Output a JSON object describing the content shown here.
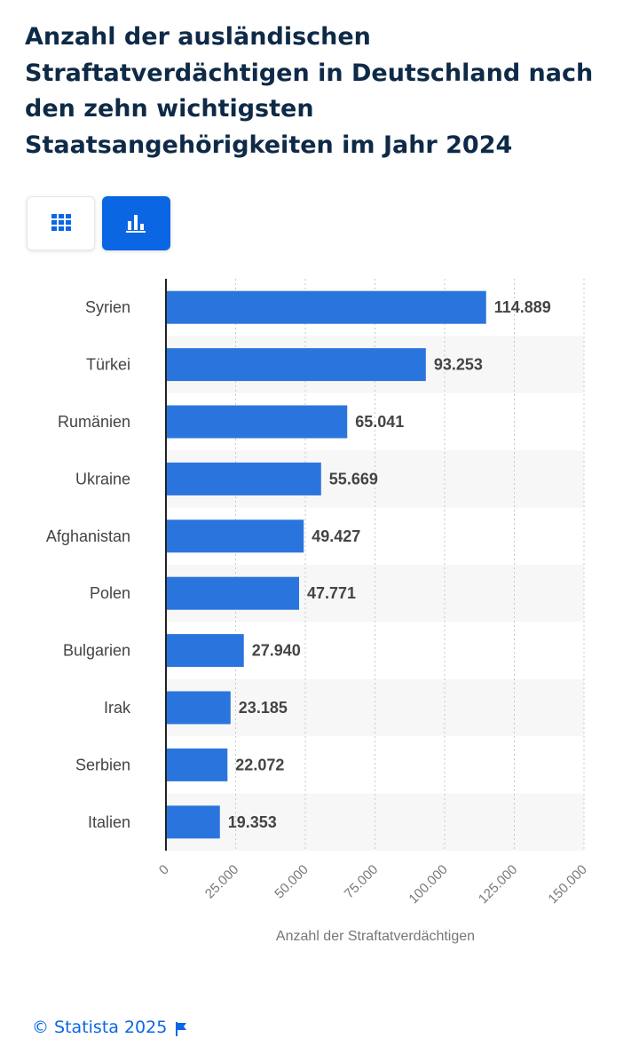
{
  "header": {
    "title": "Anzahl der ausländischen Straftatverdächtigen in Deutschland nach den zehn wichtigsten Staatsangehörigkeiten im Jahr 2024"
  },
  "view_toggle": {
    "table_icon": "grid-icon",
    "chart_icon": "bar-chart-icon",
    "active": "chart"
  },
  "footer": {
    "copyright": "© Statista 2025",
    "flag_icon": "flag-icon"
  },
  "colors": {
    "bar": "#2a75dd",
    "accent": "#0b66e4",
    "title": "#0e2a47"
  },
  "chart_data": {
    "type": "bar",
    "orientation": "horizontal",
    "categories": [
      "Syrien",
      "Türkei",
      "Rumänien",
      "Ukraine",
      "Afghanistan",
      "Polen",
      "Bulgarien",
      "Irak",
      "Serbien",
      "Italien"
    ],
    "values": [
      114889,
      93253,
      65041,
      55669,
      49427,
      47771,
      27940,
      23185,
      22072,
      19353
    ],
    "value_labels": [
      "114.889",
      "93.253",
      "65.041",
      "55.669",
      "49.427",
      "47.771",
      "27.940",
      "23.185",
      "22.072",
      "19.353"
    ],
    "xlabel": "Anzahl der Straftatverdächtigen",
    "xlim": [
      0,
      150000
    ],
    "xticks": [
      0,
      25000,
      50000,
      75000,
      100000,
      125000,
      150000
    ],
    "xtick_labels": [
      "0",
      "25.000",
      "50.000",
      "75.000",
      "100.000",
      "125.000",
      "150.000"
    ],
    "grid": "vertical-dotted"
  }
}
